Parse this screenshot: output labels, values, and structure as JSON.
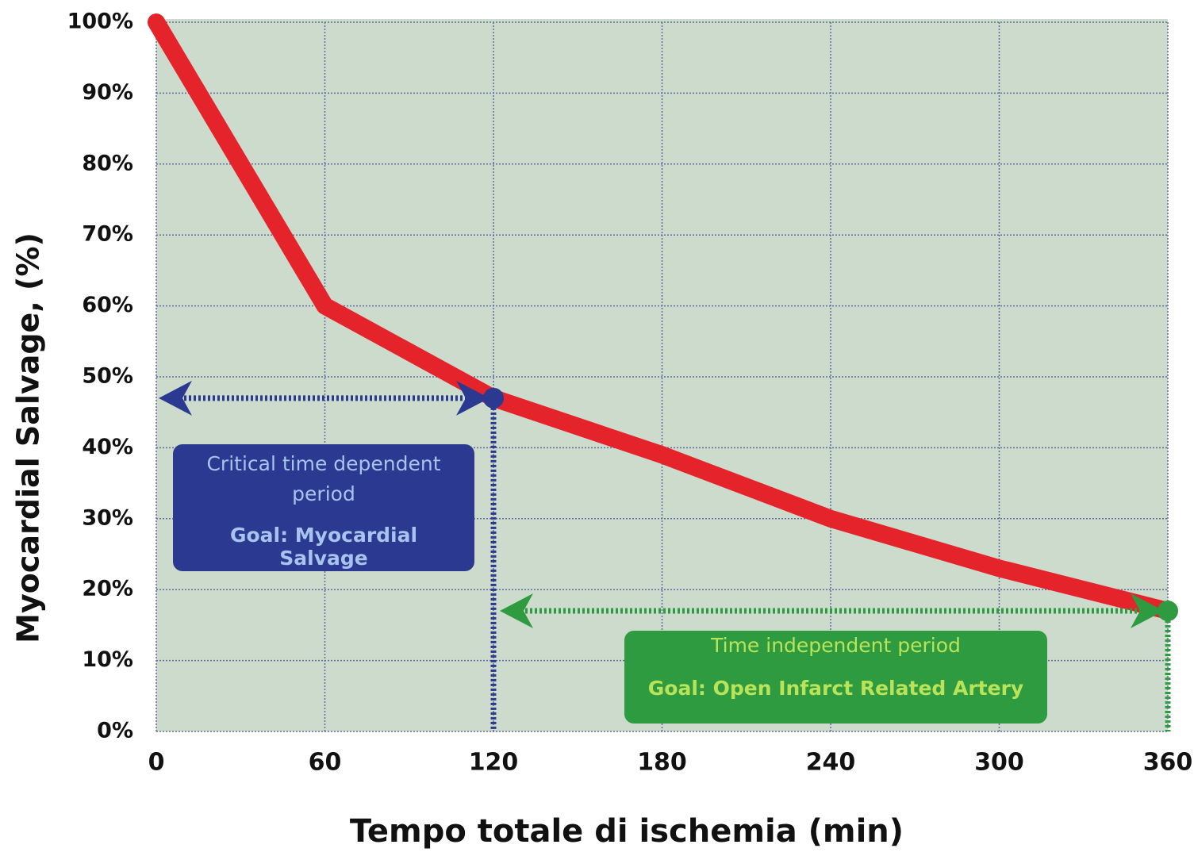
{
  "chart_data": {
    "type": "line",
    "xlabel": "Tempo totale di ischemia (min)",
    "ylabel": "Myocardial Salvage, (%)",
    "x": [
      0,
      60,
      120,
      180,
      240,
      300,
      360
    ],
    "series": [
      {
        "color": "#e5232a",
        "values": [
          100,
          60,
          47,
          39,
          30,
          23,
          17
        ]
      }
    ],
    "xlim": [
      0,
      360
    ],
    "ylim": [
      0,
      100
    ],
    "xticks": [
      0,
      60,
      120,
      180,
      240,
      300,
      360
    ],
    "yticks": [
      {
        "value": 0,
        "label": "0%"
      },
      {
        "value": 10,
        "label": "10%"
      },
      {
        "value": 20,
        "label": "20%"
      },
      {
        "value": 30,
        "label": "30%"
      },
      {
        "value": 40,
        "label": "40%"
      },
      {
        "value": 50,
        "label": "50%"
      },
      {
        "value": 60,
        "label": "60%"
      },
      {
        "value": 70,
        "label": "70%"
      },
      {
        "value": 80,
        "label": "80%"
      },
      {
        "value": 90,
        "label": "90%"
      },
      {
        "value": 100,
        "label": "100%"
      }
    ],
    "grid": true,
    "annotations": [
      {
        "text": "Critical time dependent period",
        "goal": "Goal: Myocardial Salvage",
        "color": "#2b3990",
        "text_color": "#a8c3ee"
      },
      {
        "text": "Time independent period",
        "goal": "Goal: Open Infarct Related Artery",
        "color": "#2e9b40",
        "text_color": "#b9e45a"
      }
    ]
  }
}
